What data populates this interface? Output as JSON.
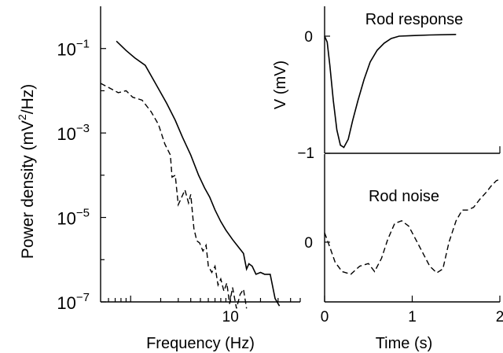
{
  "chart_data": [
    {
      "type": "line",
      "panel": "power-spectrum",
      "title": "",
      "xlabel": "Frequency (Hz)",
      "ylabel": "Power density (mV²/Hz)",
      "ylabel_parts": {
        "base": "Power density (mV",
        "sup": "2",
        "tail": "/Hz)"
      },
      "xscale": "log",
      "yscale": "log",
      "xlim": [
        0.5,
        50
      ],
      "ylim": [
        1e-07,
        1
      ],
      "xticks": [
        {
          "value": 10,
          "label": "10"
        }
      ],
      "yticks": [
        {
          "value": 0.1,
          "base": "10",
          "exp": "−1"
        },
        {
          "value": 0.001,
          "base": "10",
          "exp": "−3"
        },
        {
          "value": 1e-05,
          "base": "10",
          "exp": "−5"
        },
        {
          "value": 1e-07,
          "base": "10",
          "exp": "−7"
        }
      ],
      "grid": false,
      "series": [
        {
          "style": "solid",
          "x": [
            0.72,
            0.9,
            1.1,
            1.4,
            1.8,
            2.3,
            2.8,
            3.3,
            4.0,
            4.8,
            5.5,
            6.2,
            7.0,
            8.0,
            9.0,
            10.5,
            12.0,
            13.5,
            14.5,
            15.3,
            16.5,
            18.0,
            20.0,
            22.0,
            25.0,
            28.0,
            31.0
          ],
          "y": [
            0.15,
            0.09,
            0.06,
            0.04,
            0.014,
            0.005,
            0.002,
            0.0008,
            0.0003,
            0.0001,
            5e-05,
            3e-05,
            1.5e-05,
            8e-06,
            5e-06,
            3e-06,
            2e-06,
            1.4e-06,
            6e-07,
            8e-07,
            7e-07,
            4.5e-07,
            5e-07,
            4.5e-07,
            4.5e-07,
            1.2e-07,
            8e-08
          ]
        },
        {
          "style": "dashed",
          "x": [
            0.5,
            0.6,
            0.75,
            0.9,
            1.05,
            1.3,
            1.6,
            1.9,
            2.2,
            2.5,
            2.6,
            2.8,
            3.0,
            3.2,
            3.5,
            3.8,
            4.0,
            4.3,
            4.6,
            4.9,
            5.3,
            5.7,
            6.0,
            6.5,
            7.0,
            7.5,
            8.0,
            8.6,
            9.2,
            9.8,
            10.5,
            11.5,
            12.5,
            13.5,
            14.5
          ],
          "y": [
            0.015,
            0.012,
            0.009,
            0.01,
            0.007,
            0.006,
            0.0032,
            0.0016,
            0.00055,
            0.0003,
            9e-05,
            0.0001,
            2e-05,
            2.8e-05,
            4.5e-05,
            2.2e-05,
            3.5e-05,
            5.5e-06,
            2.8e-06,
            2.5e-06,
            1.6e-06,
            2.2e-06,
            7e-07,
            5e-07,
            7e-07,
            2.5e-07,
            3.5e-07,
            1.8e-07,
            2.8e-07,
            9e-08,
            2.2e-07,
            7e-08,
            1.5e-07,
            2e-07,
            7e-08
          ]
        }
      ]
    },
    {
      "type": "line",
      "panel": "rod-response",
      "title": "Rod response",
      "xlabel": "",
      "ylabel": "V (mV)",
      "xlim": [
        0,
        2
      ],
      "ylim": [
        -1,
        0.2
      ],
      "yticks": [
        {
          "value": 0,
          "label": "0"
        },
        {
          "value": -1,
          "label": "−1"
        }
      ],
      "grid": false,
      "series": [
        {
          "style": "solid",
          "x": [
            0.0,
            0.03,
            0.06,
            0.1,
            0.14,
            0.18,
            0.22,
            0.27,
            0.32,
            0.38,
            0.45,
            0.52,
            0.6,
            0.68,
            0.76,
            0.85,
            1.0,
            1.2,
            1.5
          ],
          "y": [
            0.0,
            -0.05,
            -0.25,
            -0.55,
            -0.8,
            -0.93,
            -0.95,
            -0.88,
            -0.72,
            -0.55,
            -0.37,
            -0.22,
            -0.12,
            -0.06,
            -0.02,
            0.0,
            0.005,
            0.01,
            0.015
          ]
        }
      ]
    },
    {
      "type": "line",
      "panel": "rod-noise",
      "title": "Rod noise",
      "xlabel": "Time (s)",
      "ylabel": "",
      "xlim": [
        0,
        2
      ],
      "ylim": [
        -0.45,
        0.6
      ],
      "xticks": [
        {
          "value": 0,
          "label": "0"
        },
        {
          "value": 1,
          "label": "1"
        },
        {
          "value": 2,
          "label": "2"
        }
      ],
      "yticks": [
        {
          "value": 0,
          "label": "0"
        }
      ],
      "grid": false,
      "series": [
        {
          "style": "dashed",
          "x": [
            0.0,
            0.05,
            0.12,
            0.2,
            0.3,
            0.4,
            0.5,
            0.57,
            0.65,
            0.72,
            0.8,
            0.88,
            0.96,
            1.04,
            1.12,
            1.2,
            1.28,
            1.35,
            1.42,
            1.5,
            1.57,
            1.63,
            1.7,
            1.77,
            1.84,
            1.9,
            1.96,
            2.0
          ],
          "y": [
            0.07,
            -0.02,
            -0.15,
            -0.22,
            -0.24,
            -0.18,
            -0.16,
            -0.22,
            -0.12,
            0.02,
            0.14,
            0.16,
            0.12,
            0.02,
            -0.08,
            -0.18,
            -0.23,
            -0.2,
            0.0,
            0.16,
            0.24,
            0.24,
            0.26,
            0.32,
            0.37,
            0.42,
            0.46,
            0.47
          ]
        }
      ]
    }
  ]
}
